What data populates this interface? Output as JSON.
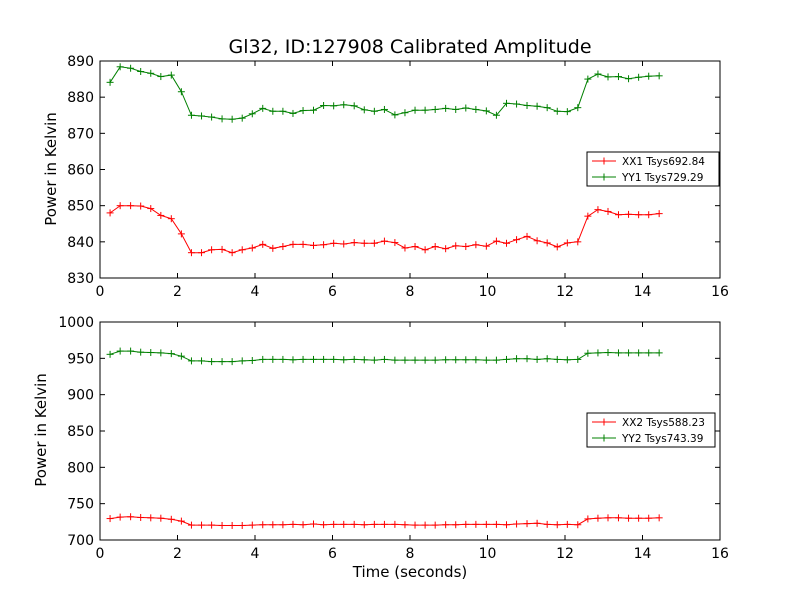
{
  "chart_data": [
    {
      "type": "line",
      "title": "Gl32, ID:127908 Calibrated Amplitude",
      "xlabel": "",
      "ylabel": "Power in Kelvin",
      "xlim": [
        0,
        16
      ],
      "ylim": [
        830,
        890
      ],
      "xticks": [
        "0",
        "2",
        "4",
        "6",
        "8",
        "10",
        "12",
        "14",
        "16"
      ],
      "yticks": [
        "830",
        "840",
        "850",
        "860",
        "870",
        "880",
        "890"
      ],
      "legend_position": "center-right",
      "x": [
        0.26,
        0.52,
        0.79,
        1.05,
        1.31,
        1.57,
        1.84,
        2.1,
        2.36,
        2.62,
        2.88,
        3.15,
        3.41,
        3.67,
        3.93,
        4.2,
        4.46,
        4.72,
        4.98,
        5.24,
        5.51,
        5.77,
        6.03,
        6.29,
        6.56,
        6.82,
        7.08,
        7.34,
        7.61,
        7.87,
        8.13,
        8.39,
        8.65,
        8.92,
        9.18,
        9.44,
        9.7,
        9.97,
        10.23,
        10.49,
        10.75,
        11.02,
        11.28,
        11.54,
        11.8,
        12.06,
        12.33,
        12.59,
        12.85,
        13.11,
        13.38,
        13.64,
        13.9,
        14.16,
        14.43
      ],
      "series": [
        {
          "name": "XX1 Tsys692.84",
          "color": "#ff0000",
          "values": [
            848.0,
            850.0,
            850.0,
            849.9,
            849.2,
            847.3,
            846.4,
            842.2,
            837.0,
            837.0,
            837.8,
            837.9,
            837.0,
            837.8,
            838.3,
            839.3,
            838.2,
            838.7,
            839.3,
            839.3,
            839.0,
            839.2,
            839.6,
            839.4,
            839.8,
            839.6,
            839.6,
            840.2,
            839.8,
            838.3,
            838.7,
            837.8,
            838.7,
            838.1,
            838.9,
            838.7,
            839.2,
            838.8,
            840.2,
            839.6,
            840.6,
            841.5,
            840.3,
            839.7,
            838.6,
            839.7,
            840.0,
            847.1,
            848.9,
            848.4,
            847.5,
            847.6,
            847.5,
            847.5,
            847.8
          ]
        },
        {
          "name": "YY1 Tsys729.29",
          "color": "#008000",
          "values": [
            884.1,
            888.4,
            888.0,
            887.1,
            886.6,
            885.7,
            886.1,
            881.5,
            875.0,
            874.8,
            874.5,
            874.0,
            873.9,
            874.2,
            875.4,
            876.9,
            876.1,
            876.1,
            875.5,
            876.3,
            876.4,
            877.7,
            877.6,
            877.9,
            877.6,
            876.5,
            876.1,
            876.6,
            875.1,
            875.7,
            876.4,
            876.4,
            876.6,
            876.9,
            876.6,
            877.0,
            876.6,
            876.2,
            875.0,
            878.3,
            878.1,
            877.7,
            877.5,
            877.1,
            876.1,
            876.0,
            877.1,
            885.0,
            886.4,
            885.6,
            885.7,
            885.1,
            885.5,
            885.8,
            885.9
          ]
        }
      ]
    },
    {
      "type": "line",
      "title": "",
      "xlabel": "Time (seconds)",
      "ylabel": "Power in Kelvin",
      "xlim": [
        0,
        16
      ],
      "ylim": [
        700,
        1000
      ],
      "xticks": [
        "0",
        "2",
        "4",
        "6",
        "8",
        "10",
        "12",
        "14",
        "16"
      ],
      "yticks": [
        "700",
        "750",
        "800",
        "850",
        "900",
        "950",
        "1000"
      ],
      "legend_position": "center-right",
      "x": [
        0.26,
        0.52,
        0.79,
        1.05,
        1.31,
        1.57,
        1.84,
        2.1,
        2.36,
        2.62,
        2.88,
        3.15,
        3.41,
        3.67,
        3.93,
        4.2,
        4.46,
        4.72,
        4.98,
        5.24,
        5.51,
        5.77,
        6.03,
        6.29,
        6.56,
        6.82,
        7.08,
        7.34,
        7.61,
        7.87,
        8.13,
        8.39,
        8.65,
        8.92,
        9.18,
        9.44,
        9.7,
        9.97,
        10.23,
        10.49,
        10.75,
        11.02,
        11.28,
        11.54,
        11.8,
        12.06,
        12.33,
        12.59,
        12.85,
        13.11,
        13.38,
        13.64,
        13.9,
        14.16,
        14.43
      ],
      "series": [
        {
          "name": "XX2 Tsys588.23",
          "color": "#ff0000",
          "values": [
            729.5,
            731.5,
            732.0,
            731.0,
            730.5,
            730.0,
            728.5,
            726.0,
            720.5,
            720.5,
            720.5,
            720.0,
            720.0,
            720.0,
            720.5,
            721.0,
            721.0,
            721.0,
            721.5,
            721.0,
            722.0,
            721.0,
            721.5,
            721.5,
            721.5,
            721.0,
            721.5,
            721.5,
            721.5,
            721.0,
            720.5,
            720.5,
            720.5,
            721.0,
            721.0,
            721.5,
            721.5,
            721.5,
            721.5,
            721.0,
            722.0,
            722.5,
            723.0,
            721.5,
            721.0,
            721.5,
            721.0,
            729.0,
            730.0,
            730.5,
            730.5,
            730.0,
            730.0,
            730.0,
            730.5
          ]
        },
        {
          "name": "YY2 Tsys743.39",
          "color": "#008000",
          "values": [
            955.5,
            960.0,
            960.0,
            958.5,
            958.0,
            957.5,
            956.5,
            953.0,
            946.5,
            946.5,
            945.5,
            945.5,
            945.5,
            946.5,
            947.0,
            948.5,
            948.5,
            948.5,
            948.0,
            948.5,
            948.5,
            948.5,
            948.5,
            948.0,
            948.5,
            948.0,
            947.5,
            948.5,
            947.5,
            947.5,
            947.5,
            947.5,
            947.5,
            948.0,
            948.0,
            948.0,
            948.0,
            947.5,
            947.5,
            948.5,
            949.5,
            949.5,
            948.5,
            949.5,
            948.5,
            948.0,
            948.5,
            957.0,
            957.5,
            958.0,
            957.5,
            957.5,
            957.5,
            957.5,
            957.5
          ]
        }
      ]
    }
  ]
}
